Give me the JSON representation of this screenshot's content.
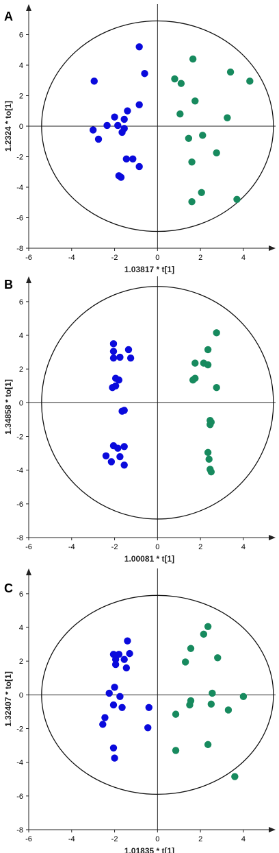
{
  "figure": {
    "colors": {
      "group1": "#0a0adc",
      "group2": "#178a5e",
      "axis": "#222222",
      "ellipse": "#111111"
    },
    "panels": [
      {
        "letter": "A",
        "chart_data": {
          "type": "scatter",
          "xlabel": "1.03817 * t[1]",
          "ylabel": "1.2324 * to[1]",
          "xlim": [
            -6,
            5.5
          ],
          "ylim": [
            -8,
            8
          ],
          "xticks": [
            -6,
            -4,
            -2,
            0,
            2,
            4
          ],
          "yticks": [
            -8,
            -6,
            -4,
            -2,
            0,
            2,
            4,
            6
          ],
          "ellipse": {
            "cx": 0,
            "cy": 0,
            "rx": 5.4,
            "ry": 6.9
          },
          "series": [
            {
              "points": [
                [
                  -0.85,
                  5.2
                ],
                [
                  -0.6,
                  3.45
                ],
                [
                  -2.95,
                  2.95
                ],
                [
                  -0.85,
                  1.4
                ],
                [
                  -1.4,
                  1.0
                ],
                [
                  -2.0,
                  0.6
                ],
                [
                  -1.55,
                  0.45
                ],
                [
                  -2.35,
                  0.05
                ],
                [
                  -1.85,
                  0.05
                ],
                [
                  -3.0,
                  -0.25
                ],
                [
                  -1.55,
                  -0.15
                ],
                [
                  -1.65,
                  -0.4
                ],
                [
                  -2.75,
                  -0.85
                ],
                [
                  -1.45,
                  -2.15
                ],
                [
                  -1.15,
                  -2.15
                ],
                [
                  -0.85,
                  -2.65
                ],
                [
                  -1.8,
                  -3.25
                ],
                [
                  -1.7,
                  -3.35
                ]
              ]
            },
            {
              "points": [
                [
                  1.65,
                  4.4
                ],
                [
                  3.4,
                  3.55
                ],
                [
                  0.8,
                  3.1
                ],
                [
                  4.3,
                  2.95
                ],
                [
                  1.1,
                  2.8
                ],
                [
                  1.75,
                  1.65
                ],
                [
                  1.05,
                  0.8
                ],
                [
                  3.25,
                  0.55
                ],
                [
                  2.1,
                  -0.6
                ],
                [
                  1.45,
                  -0.8
                ],
                [
                  2.75,
                  -1.75
                ],
                [
                  1.6,
                  -2.35
                ],
                [
                  2.05,
                  -4.35
                ],
                [
                  3.7,
                  -4.8
                ],
                [
                  1.6,
                  -4.95
                ]
              ]
            }
          ]
        }
      },
      {
        "letter": "B",
        "chart_data": {
          "type": "scatter",
          "xlabel": "1.00081 * t[1]",
          "ylabel": "1.34858 * to[1]",
          "xlim": [
            -6,
            5.5
          ],
          "ylim": [
            -8,
            7.5
          ],
          "xticks": [
            -6,
            -4,
            -2,
            0,
            2,
            4
          ],
          "yticks": [
            -8,
            -6,
            -4,
            -2,
            0,
            2,
            4,
            6
          ],
          "ellipse": {
            "cx": 0,
            "cy": 0,
            "rx": 5.4,
            "ry": 6.9
          },
          "series": [
            {
              "points": [
                [
                  -2.05,
                  3.5
                ],
                [
                  -2.05,
                  3.05
                ],
                [
                  -1.35,
                  3.15
                ],
                [
                  -2.05,
                  2.65
                ],
                [
                  -1.75,
                  2.7
                ],
                [
                  -1.25,
                  2.65
                ],
                [
                  -1.95,
                  1.45
                ],
                [
                  -1.8,
                  1.35
                ],
                [
                  -2.1,
                  0.9
                ],
                [
                  -1.95,
                  1.0
                ],
                [
                  -1.65,
                  -0.5
                ],
                [
                  -1.55,
                  -0.45
                ],
                [
                  -2.05,
                  -2.55
                ],
                [
                  -1.85,
                  -2.7
                ],
                [
                  -1.55,
                  -2.6
                ],
                [
                  -2.4,
                  -3.15
                ],
                [
                  -1.75,
                  -3.2
                ],
                [
                  -2.15,
                  -3.5
                ],
                [
                  -1.55,
                  -3.7
                ]
              ]
            },
            {
              "points": [
                [
                  2.75,
                  4.15
                ],
                [
                  2.35,
                  3.15
                ],
                [
                  1.75,
                  2.35
                ],
                [
                  2.15,
                  2.35
                ],
                [
                  2.35,
                  2.25
                ],
                [
                  1.75,
                  1.45
                ],
                [
                  1.65,
                  1.35
                ],
                [
                  2.75,
                  0.9
                ],
                [
                  2.45,
                  -1.05
                ],
                [
                  2.5,
                  -1.15
                ],
                [
                  2.45,
                  -1.3
                ],
                [
                  2.35,
                  -2.95
                ],
                [
                  2.4,
                  -3.35
                ],
                [
                  2.45,
                  -3.95
                ],
                [
                  2.5,
                  -4.1
                ]
              ]
            }
          ]
        }
      },
      {
        "letter": "C",
        "chart_data": {
          "type": "scatter",
          "xlabel": "1.01835 * t[1]",
          "ylabel": "1.32407 * to[1]",
          "xlim": [
            -6,
            5.5
          ],
          "ylim": [
            -8,
            7.5
          ],
          "xticks": [
            -6,
            -4,
            -2,
            0,
            2,
            4
          ],
          "yticks": [
            -8,
            -6,
            -4,
            -2,
            0,
            2,
            4,
            6
          ],
          "ellipse": {
            "cx": 0,
            "cy": 0,
            "rx": 5.4,
            "ry": 5.9
          },
          "series": [
            {
              "points": [
                [
                  -1.4,
                  3.2
                ],
                [
                  -2.05,
                  2.4
                ],
                [
                  -1.8,
                  2.4
                ],
                [
                  -1.95,
                  2.1
                ],
                [
                  -1.3,
                  2.45
                ],
                [
                  -1.55,
                  2.1
                ],
                [
                  -1.45,
                  1.6
                ],
                [
                  -1.95,
                  1.8
                ],
                [
                  -2.0,
                  0.45
                ],
                [
                  -2.25,
                  0.1
                ],
                [
                  -1.75,
                  -0.1
                ],
                [
                  -2.05,
                  -0.6
                ],
                [
                  -1.65,
                  -0.75
                ],
                [
                  -0.4,
                  -0.75
                ],
                [
                  -2.45,
                  -1.35
                ],
                [
                  -2.55,
                  -1.75
                ],
                [
                  -0.45,
                  -1.95
                ],
                [
                  -2.05,
                  -3.15
                ],
                [
                  -2.0,
                  -3.75
                ]
              ]
            },
            {
              "points": [
                [
                  2.35,
                  4.05
                ],
                [
                  2.15,
                  3.6
                ],
                [
                  1.55,
                  2.75
                ],
                [
                  2.8,
                  2.2
                ],
                [
                  1.3,
                  1.95
                ],
                [
                  2.55,
                  0.1
                ],
                [
                  4.0,
                  -0.1
                ],
                [
                  1.55,
                  -0.35
                ],
                [
                  1.5,
                  -0.6
                ],
                [
                  2.5,
                  -0.55
                ],
                [
                  3.3,
                  -0.9
                ],
                [
                  0.85,
                  -1.15
                ],
                [
                  2.35,
                  -2.95
                ],
                [
                  0.85,
                  -3.3
                ],
                [
                  3.6,
                  -4.85
                ]
              ]
            }
          ]
        }
      }
    ]
  }
}
